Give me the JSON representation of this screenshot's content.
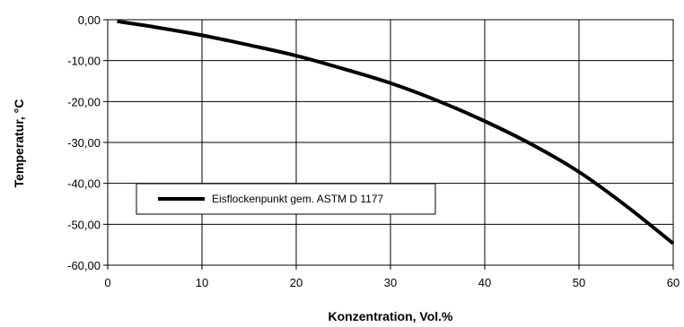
{
  "chart_data": {
    "type": "line",
    "xlabel": "Konzentration, Vol.%",
    "ylabel": "Temperatur, °C",
    "xlim": [
      0,
      60
    ],
    "ylim": [
      -60,
      0
    ],
    "x_ticks": [
      0,
      10,
      20,
      30,
      40,
      50,
      60
    ],
    "x_tick_labels": [
      "0",
      "10",
      "20",
      "30",
      "40",
      "50",
      "60"
    ],
    "y_ticks": [
      0,
      -10,
      -20,
      -30,
      -40,
      -50,
      -60
    ],
    "y_tick_labels": [
      "0,00",
      "-10,00",
      "-20,00",
      "-30,00",
      "-40,00",
      "-50,00",
      "-60,00"
    ],
    "grid": true,
    "legend_position": "lower-left",
    "series": [
      {
        "name": "Eisflockenpunkt gem. ASTM D 1177",
        "color": "#000000",
        "x": [
          1,
          5,
          10,
          15,
          20,
          25,
          30,
          35,
          40,
          45,
          50,
          55,
          60
        ],
        "y": [
          -0.4,
          -1.8,
          -3.8,
          -6.2,
          -8.8,
          -12,
          -15.5,
          -19.8,
          -24.8,
          -30.5,
          -37.2,
          -45.5,
          -54.7
        ]
      }
    ]
  }
}
